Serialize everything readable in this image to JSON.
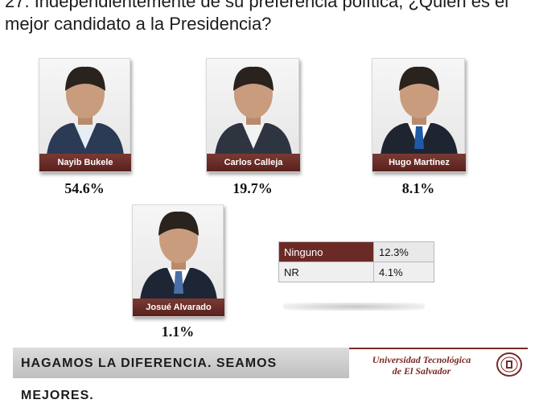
{
  "question": "27. Independientemente de su preferencia política, ¿Quién es el mejor candidato a la Presidencia?",
  "chart_data": {
    "type": "table",
    "categories": [
      "Nayib Bukele",
      "Carlos Calleja",
      "Hugo Martínez",
      "Josué Alvarado",
      "Ninguno",
      "NR"
    ],
    "values": [
      54.6,
      19.7,
      8.1,
      1.1,
      12.3,
      4.1
    ],
    "value_labels": [
      "54.6%",
      "19.7%",
      "8.1%",
      "1.1%",
      "12.3%",
      "4.1%"
    ],
    "title": "27. Independientemente de su preferencia política, ¿Quién es el mejor candidato a la Presidencia?"
  },
  "candidates": [
    {
      "name": "Nayib Bukele",
      "pct": "54.6%",
      "suit": "#2b3a55",
      "shirt": "#e6eef5",
      "tie": ""
    },
    {
      "name": "Carlos Calleja",
      "pct": "19.7%",
      "suit": "#2e3440",
      "shirt": "#f2f2f2",
      "tie": ""
    },
    {
      "name": "Hugo Martínez",
      "pct": "8.1%",
      "suit": "#1f2530",
      "shirt": "#ffffff",
      "tie": "#1e5aa8"
    },
    {
      "name": "Josué Alvarado",
      "pct": "1.1%",
      "suit": "#1e2636",
      "shirt": "#ffffff",
      "tie": "#4a6fa8"
    }
  ],
  "others": [
    {
      "label": "Ninguno",
      "value": "12.3%"
    },
    {
      "label": "NR",
      "value": "4.1%"
    }
  ],
  "footer": {
    "slogan": "HAGAMOS LA DIFERENCIA. SEAMOS MEJORES.",
    "university_line1": "Universidad Tecnológica",
    "university_line2": "de El Salvador"
  },
  "colors": {
    "accent": "#6b2a26",
    "band": "#c8c8c8"
  }
}
